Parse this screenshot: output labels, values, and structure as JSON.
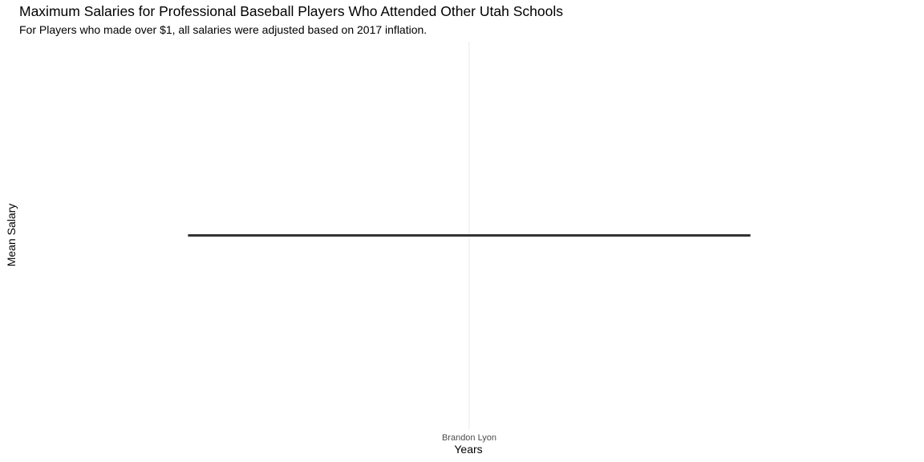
{
  "chart_data": {
    "type": "line",
    "title": "Maximum Salaries for Professional Baseball Players Who Attended Other Utah Schools",
    "subtitle": "For Players who made over $1, all salaries were adjusted based on 2017 inflation.",
    "xlabel": "Years",
    "ylabel": "Mean Salary",
    "categories": [
      "Brandon Lyon"
    ],
    "series": [
      {
        "values": [
          1
        ]
      }
    ],
    "grid": true,
    "line_color": "#333333",
    "grid_color": "#ebebeb"
  }
}
